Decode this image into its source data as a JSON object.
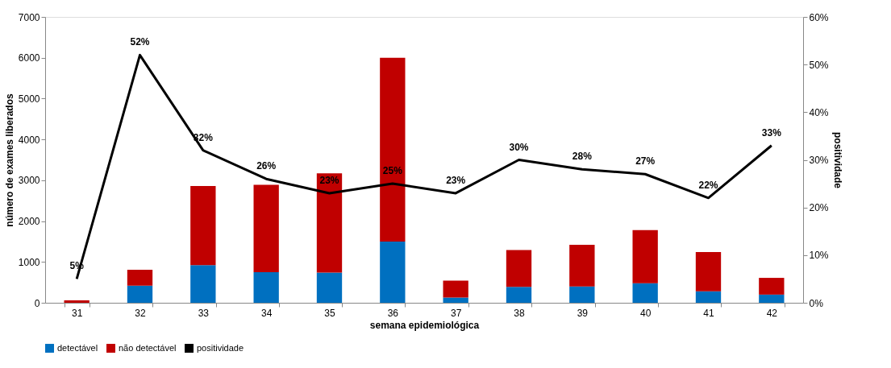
{
  "chart_data": {
    "type": "bar",
    "stacked": true,
    "xlabel": "semana epidemiológica",
    "ylabel": "número de exames liberados",
    "y2label": "positividade",
    "categories": [
      "31",
      "32",
      "33",
      "34",
      "35",
      "36",
      "37",
      "38",
      "39",
      "40",
      "41",
      "42"
    ],
    "series": [
      {
        "name": "detectável",
        "color": "#0070c0",
        "values": [
          null,
          420,
          920,
          750,
          740,
          1500,
          130,
          390,
          400,
          480,
          280,
          200
        ]
      },
      {
        "name": "não detectável",
        "color": "#c00000",
        "values": [
          60,
          390,
          1940,
          2140,
          2430,
          4500,
          410,
          900,
          1020,
          1300,
          960,
          410
        ]
      },
      {
        "name": "positividade",
        "type": "line",
        "axis": "y2",
        "color": "#000000",
        "values": [
          5,
          52,
          32,
          26,
          23,
          25,
          23,
          30,
          28,
          27,
          22,
          33
        ],
        "value_labels": [
          "5%",
          "52%",
          "32%",
          "26%",
          "23%",
          "25%",
          "23%",
          "30%",
          "28%",
          "27%",
          "22%",
          "33%"
        ]
      }
    ],
    "ylim": [
      0,
      7000
    ],
    "yticks": [
      0,
      1000,
      2000,
      3000,
      4000,
      5000,
      6000,
      7000
    ],
    "y2lim": [
      0,
      60
    ],
    "y2ticks": [
      {
        "value": 0,
        "label": "0%"
      },
      {
        "value": 10,
        "label": "10%"
      },
      {
        "value": 20,
        "label": "20%"
      },
      {
        "value": 30,
        "label": "30%"
      },
      {
        "value": 40,
        "label": "40%"
      },
      {
        "value": 50,
        "label": "50%"
      },
      {
        "value": 60,
        "label": "60%"
      }
    ],
    "grid": false,
    "legend": "bottom",
    "marker": "none",
    "line_style": "solid"
  }
}
